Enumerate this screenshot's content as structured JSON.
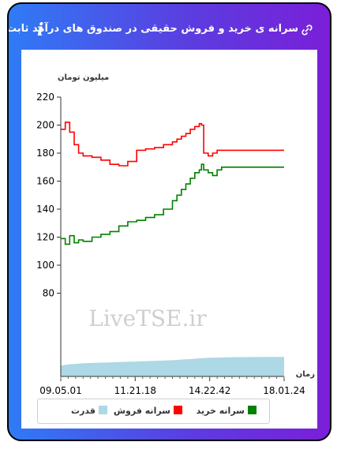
{
  "header": {
    "title": "سرانه ی خرید و فروش حقیقی در صندوق های درآمد ثابت",
    "info_icon": "info-icon",
    "link_icon": "link-icon"
  },
  "chart_data": {
    "type": "line",
    "ylabel": "میلیون تومان",
    "xlabel": "زمان",
    "ylim": [
      80,
      220
    ],
    "yticks": [
      80,
      100,
      120,
      140,
      160,
      180,
      200,
      220
    ],
    "xtick_labels": [
      "09.05.01",
      "11.21.18",
      "14.22.42",
      "18.01.24"
    ],
    "watermark": "LiveTSE.ir",
    "grid": false,
    "legend_position": "bottom",
    "x": [
      0,
      2,
      4,
      6,
      8,
      10,
      14,
      18,
      22,
      26,
      30,
      34,
      38,
      42,
      46,
      50,
      52,
      54,
      56,
      58,
      60,
      62,
      63,
      64,
      66,
      68,
      70,
      72,
      74,
      75,
      76,
      78,
      82,
      86,
      90,
      95,
      100
    ],
    "series": [
      {
        "name": "سرانه فروش",
        "color": "#ff0000",
        "values": [
          197,
          202,
          195,
          186,
          180,
          178,
          177,
          175,
          172,
          171,
          174,
          182,
          183,
          184,
          186,
          188,
          190,
          192,
          194,
          197,
          199,
          201,
          200,
          180,
          178,
          180,
          182,
          182,
          182,
          182,
          182,
          182,
          182,
          182,
          182,
          182,
          182
        ]
      },
      {
        "name": "سرانه خرید",
        "color": "#008000",
        "values": [
          119,
          115,
          121,
          116,
          118,
          117,
          120,
          122,
          124,
          128,
          131,
          132,
          134,
          136,
          140,
          146,
          150,
          154,
          158,
          162,
          166,
          168,
          172,
          168,
          166,
          164,
          168,
          170,
          170,
          170,
          170,
          170,
          170,
          170,
          170,
          170,
          170
        ]
      },
      {
        "name": "قدرت",
        "color": "#add8e6",
        "type": "area",
        "values": [
          9,
          9.5,
          10,
          10.2,
          10.5,
          10.8,
          11,
          11.3,
          11.5,
          11.8,
          12,
          12.2,
          12.5,
          12.8,
          13,
          13.3,
          13.5,
          13.8,
          14,
          14.2,
          14.5,
          14.8,
          15,
          15,
          15.2,
          15.3,
          15.4,
          15.5,
          15.6,
          15.6,
          15.7,
          15.8,
          15.8,
          15.9,
          16,
          16,
          16
        ]
      }
    ]
  }
}
